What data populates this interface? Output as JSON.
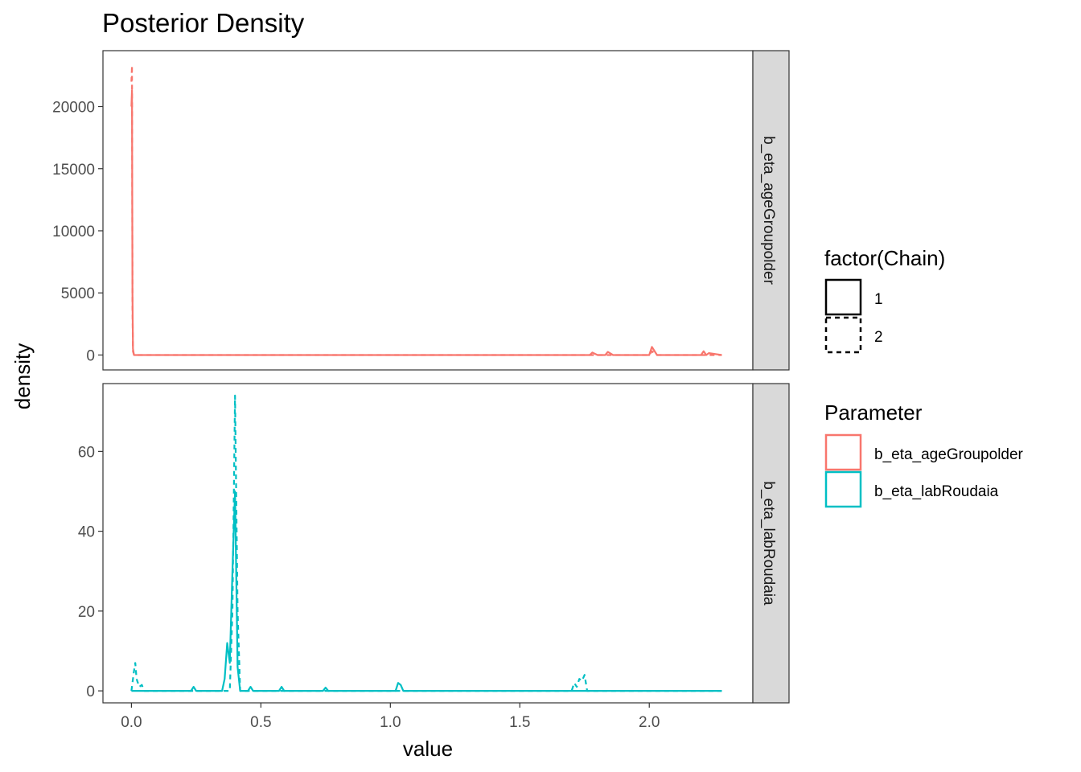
{
  "title": "Posterior Density",
  "chart_data": {
    "type": "line",
    "title": "Posterior Density",
    "xlabel": "value",
    "ylabel": "density",
    "x_ticks": [
      0.0,
      0.5,
      1.0,
      1.5,
      2.0
    ],
    "x_tick_labels": [
      "0.0",
      "0.5",
      "1.0",
      "1.5",
      "2.0"
    ],
    "xlim": [
      -0.11,
      2.4
    ],
    "grid": false,
    "legend_placement": "right",
    "facets": [
      {
        "label": "b_eta_ageGroupolder",
        "ylim": [
          -1200,
          24500
        ],
        "y_ticks": [
          0,
          5000,
          10000,
          15000,
          20000
        ],
        "y_tick_labels": [
          "0",
          "5000",
          "10000",
          "15000",
          "20000"
        ],
        "series": [
          {
            "chain": "1",
            "parameter": "b_eta_ageGroupolder",
            "x": [
              0.0,
              0.002,
              0.004,
              0.006,
              0.01,
              0.5,
              1.0,
              1.5,
              1.77,
              1.78,
              1.8,
              1.83,
              1.84,
              1.86,
              2.0,
              2.01,
              2.03,
              2.05,
              2.2,
              2.21,
              2.22,
              2.23,
              2.28
            ],
            "y": [
              20000,
              21300,
              5000,
              500,
              0,
              0,
              0,
              0,
              0,
              200,
              0,
              0,
              250,
              0,
              0,
              650,
              0,
              0,
              0,
              300,
              0,
              150,
              0
            ]
          },
          {
            "chain": "2",
            "parameter": "b_eta_ageGroupolder",
            "x": [
              0.0,
              0.002,
              0.004,
              0.006,
              0.01,
              0.5,
              1.0,
              1.5,
              2.0,
              2.01,
              2.03,
              2.28
            ],
            "y": [
              22000,
              23300,
              4000,
              300,
              0,
              0,
              0,
              0,
              0,
              300,
              0,
              0
            ]
          }
        ]
      },
      {
        "label": "b_eta_labRoudaia",
        "ylim": [
          -3,
          77
        ],
        "y_ticks": [
          0,
          20,
          40,
          60
        ],
        "y_tick_labels": [
          "0",
          "20",
          "40",
          "60"
        ],
        "series": [
          {
            "chain": "1",
            "parameter": "b_eta_labRoudaia",
            "x": [
              0.0,
              0.23,
              0.24,
              0.25,
              0.35,
              0.36,
              0.37,
              0.38,
              0.39,
              0.4,
              0.41,
              0.42,
              0.45,
              0.46,
              0.47,
              0.57,
              0.58,
              0.59,
              0.74,
              0.75,
              0.76,
              1.02,
              1.03,
              1.04,
              1.05,
              2.28
            ],
            "y": [
              0,
              0,
              1,
              0,
              0,
              3,
              12,
              7,
              30,
              50,
              6,
              0,
              0,
              1,
              0,
              0,
              1,
              0,
              0,
              0.8,
              0,
              0,
              2,
              1.5,
              0,
              0
            ]
          },
          {
            "chain": "2",
            "parameter": "b_eta_labRoudaia",
            "x": [
              0.0,
              0.01,
              0.015,
              0.02,
              0.03,
              0.04,
              0.05,
              0.36,
              0.38,
              0.39,
              0.4,
              0.41,
              0.42,
              1.7,
              1.71,
              1.72,
              1.73,
              1.74,
              1.75,
              1.76,
              1.77,
              2.28
            ],
            "y": [
              0,
              5,
              7,
              3,
              1,
              1.5,
              0,
              0,
              0,
              20,
              74,
              20,
              0,
              0,
              2,
              1,
              3,
              2.5,
              4,
              0,
              0,
              0
            ]
          }
        ]
      }
    ],
    "legends": [
      {
        "title": "factor(Chain)",
        "entries": [
          {
            "label": "1",
            "linetype": "solid"
          },
          {
            "label": "2",
            "linetype": "dashed"
          }
        ]
      },
      {
        "title": "Parameter",
        "entries": [
          {
            "label": "b_eta_ageGroupolder",
            "color": "#F8766D"
          },
          {
            "label": "b_eta_labRoudaia",
            "color": "#00BFC4"
          }
        ]
      }
    ]
  }
}
